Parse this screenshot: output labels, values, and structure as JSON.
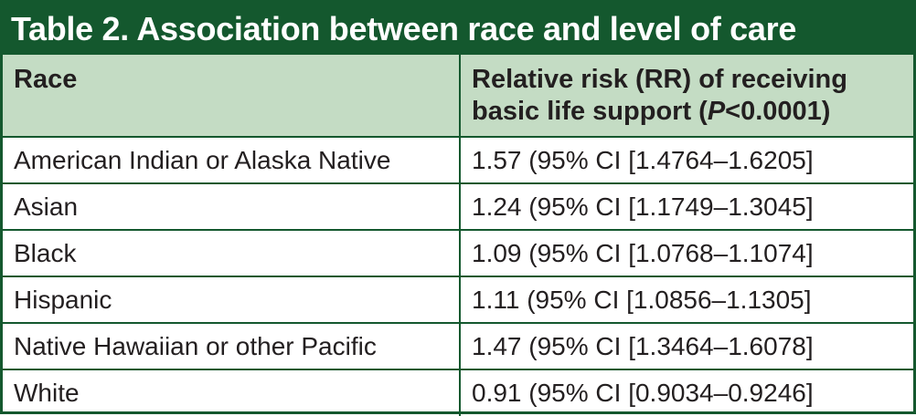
{
  "title": "Table 2. Association between race and level of care",
  "header": {
    "col1": "Race",
    "col2_line1": "Relative risk (RR) of receiving",
    "col2_line2_prefix": "basic life support (",
    "col2_line2_italic": "P",
    "col2_line2_suffix": "<0.0001)"
  },
  "rows": [
    {
      "race": "American Indian or Alaska Native",
      "rr": "1.57 (95% CI [1.4764–1.6205]"
    },
    {
      "race": "Asian",
      "rr": "1.24 (95% CI [1.1749–1.3045]"
    },
    {
      "race": "Black",
      "rr": "1.09 (95% CI [1.0768–1.1074]"
    },
    {
      "race": "Hispanic",
      "rr": "1.11 (95% CI [1.0856–1.1305]"
    },
    {
      "race": "Native Hawaiian or other Pacific",
      "rr": "1.47 (95% CI [1.3464–1.6078]"
    },
    {
      "race": "White",
      "rr": "0.91 (95% CI [0.9034–0.9246]"
    }
  ]
}
